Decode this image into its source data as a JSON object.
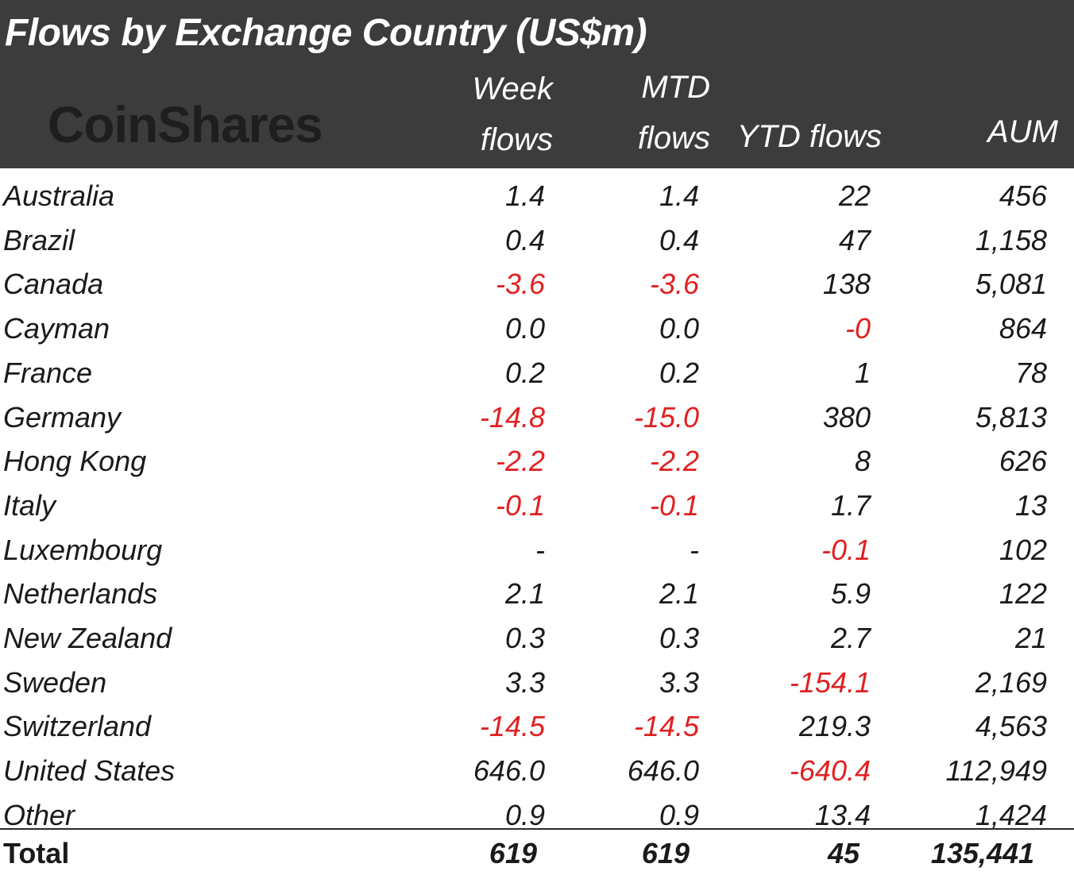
{
  "title": "Flows by Exchange Country (US$m)",
  "logo": "CoinShares",
  "columns": {
    "week": [
      "Week",
      "flows"
    ],
    "mtd": [
      "MTD",
      "flows"
    ],
    "ytd": [
      "",
      "YTD flows"
    ],
    "aum": [
      "",
      "AUM"
    ]
  },
  "rows": [
    {
      "country": "Australia",
      "week": "1.4",
      "mtd": "1.4",
      "ytd": "22",
      "aum": "456"
    },
    {
      "country": "Brazil",
      "week": "0.4",
      "mtd": "0.4",
      "ytd": "47",
      "aum": "1,158"
    },
    {
      "country": "Canada",
      "week": "-3.6",
      "mtd": "-3.6",
      "ytd": "138",
      "aum": "5,081"
    },
    {
      "country": "Cayman",
      "week": "0.0",
      "mtd": "0.0",
      "ytd": "-0",
      "aum": "864"
    },
    {
      "country": "France",
      "week": "0.2",
      "mtd": "0.2",
      "ytd": "1",
      "aum": "78"
    },
    {
      "country": "Germany",
      "week": "-14.8",
      "mtd": "-15.0",
      "ytd": "380",
      "aum": "5,813"
    },
    {
      "country": "Hong Kong",
      "week": "-2.2",
      "mtd": "-2.2",
      "ytd": "8",
      "aum": "626"
    },
    {
      "country": "Italy",
      "week": "-0.1",
      "mtd": "-0.1",
      "ytd": "1.7",
      "aum": "13"
    },
    {
      "country": "Luxembourg",
      "week": "-",
      "mtd": "-",
      "ytd": "-0.1",
      "aum": "102"
    },
    {
      "country": "Netherlands",
      "week": "2.1",
      "mtd": "2.1",
      "ytd": "5.9",
      "aum": "122"
    },
    {
      "country": "New Zealand",
      "week": "0.3",
      "mtd": "0.3",
      "ytd": "2.7",
      "aum": "21"
    },
    {
      "country": "Sweden",
      "week": "3.3",
      "mtd": "3.3",
      "ytd": "-154.1",
      "aum": "2,169"
    },
    {
      "country": "Switzerland",
      "week": "-14.5",
      "mtd": "-14.5",
      "ytd": "219.3",
      "aum": "4,563"
    },
    {
      "country": "United States",
      "week": "646.0",
      "mtd": "646.0",
      "ytd": "-640.4",
      "aum": "112,949"
    },
    {
      "country": "Other",
      "week": "0.9",
      "mtd": "0.9",
      "ytd": "13.4",
      "aum": "1,424"
    }
  ],
  "total": {
    "country": "Total",
    "week": "619",
    "mtd": "619",
    "ytd": "45",
    "aum": "135,441"
  },
  "colors": {
    "header_bg": "#3c3c3c",
    "negative": "#e02020",
    "text": "#1a1a1a"
  }
}
